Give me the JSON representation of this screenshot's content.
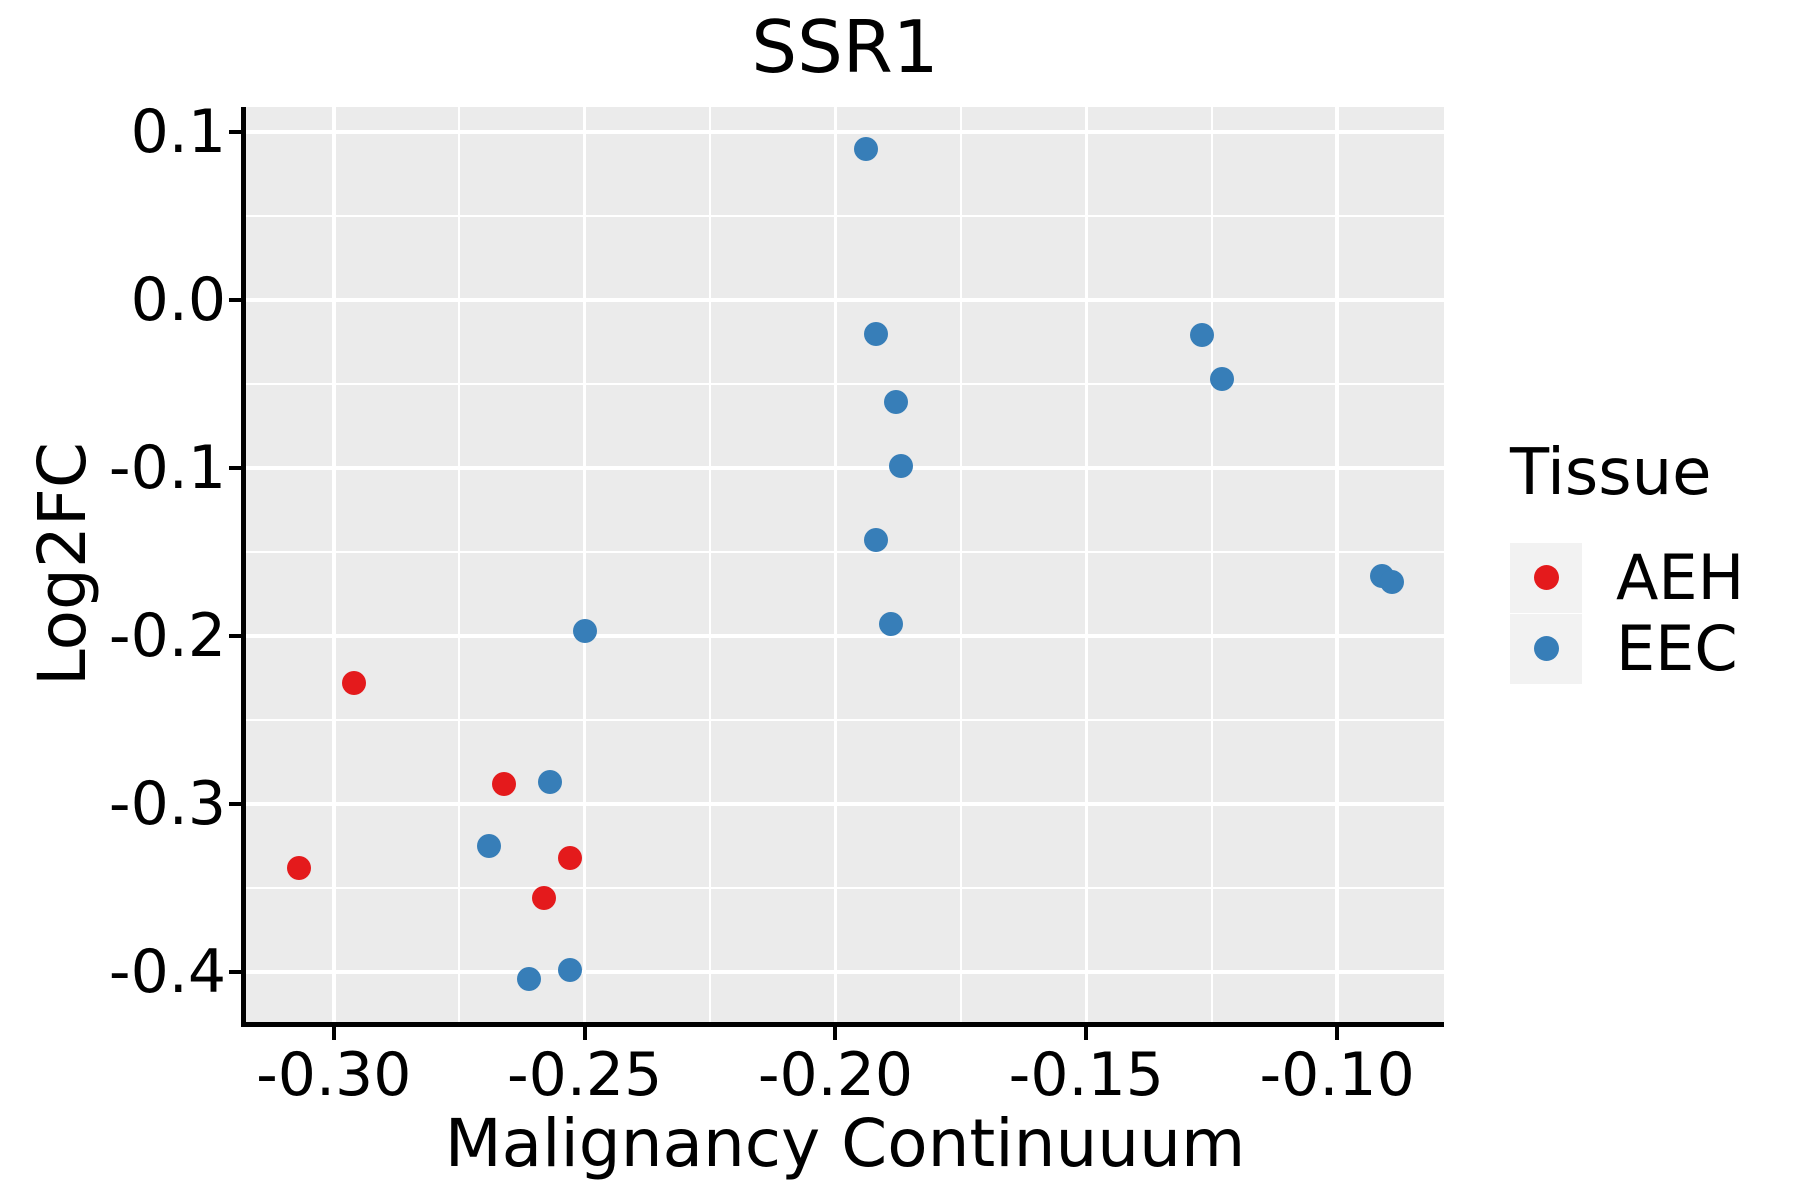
{
  "chart_data": {
    "type": "scatter",
    "title": "SSR1",
    "xlabel": "Malignancy Continuuum",
    "ylabel": "Log2FC",
    "xlim": [
      -0.3175,
      -0.0787
    ],
    "ylim": [
      -0.4298,
      0.1149
    ],
    "grid": "major and minor, white on gray panel",
    "x_ticks": [
      {
        "value": -0.3,
        "label": "-0.30"
      },
      {
        "value": -0.25,
        "label": "-0.25"
      },
      {
        "value": -0.2,
        "label": "-0.20"
      },
      {
        "value": -0.15,
        "label": "-0.15"
      },
      {
        "value": -0.1,
        "label": "-0.10"
      }
    ],
    "y_ticks": [
      {
        "value": 0.1,
        "label": "0.1"
      },
      {
        "value": 0.0,
        "label": "0.0"
      },
      {
        "value": -0.1,
        "label": "-0.1"
      },
      {
        "value": -0.2,
        "label": "-0.2"
      },
      {
        "value": -0.3,
        "label": "-0.3"
      },
      {
        "value": -0.4,
        "label": "-0.4"
      }
    ],
    "legend": {
      "title": "Tissue",
      "position": "right",
      "entries": [
        {
          "label": "AEH",
          "color": "#E41A1C"
        },
        {
          "label": "EEC",
          "color": "#377EB8"
        }
      ]
    },
    "series": [
      {
        "name": "AEH",
        "color": "#E41A1C",
        "points": [
          [
            -0.296,
            -0.228
          ],
          [
            -0.266,
            -0.288
          ],
          [
            -0.307,
            -0.338
          ],
          [
            -0.253,
            -0.332
          ],
          [
            -0.258,
            -0.356
          ]
        ]
      },
      {
        "name": "EEC",
        "color": "#377EB8",
        "points": [
          [
            -0.194,
            0.09
          ],
          [
            -0.192,
            -0.02
          ],
          [
            -0.188,
            -0.061
          ],
          [
            -0.187,
            -0.099
          ],
          [
            -0.192,
            -0.143
          ],
          [
            -0.189,
            -0.193
          ],
          [
            -0.127,
            -0.021
          ],
          [
            -0.123,
            -0.047
          ],
          [
            -0.091,
            -0.164
          ],
          [
            -0.089,
            -0.168
          ],
          [
            -0.25,
            -0.197
          ],
          [
            -0.257,
            -0.287
          ],
          [
            -0.269,
            -0.325
          ],
          [
            -0.261,
            -0.404
          ],
          [
            -0.253,
            -0.399
          ]
        ]
      }
    ],
    "colors": {
      "panel_background": "#EBEBEB",
      "gridline": "#FFFFFF",
      "axis_line": "#000000",
      "legend_key_background": "#F2F2F2",
      "aeh": "#E41A1C",
      "eec": "#377EB8"
    }
  }
}
